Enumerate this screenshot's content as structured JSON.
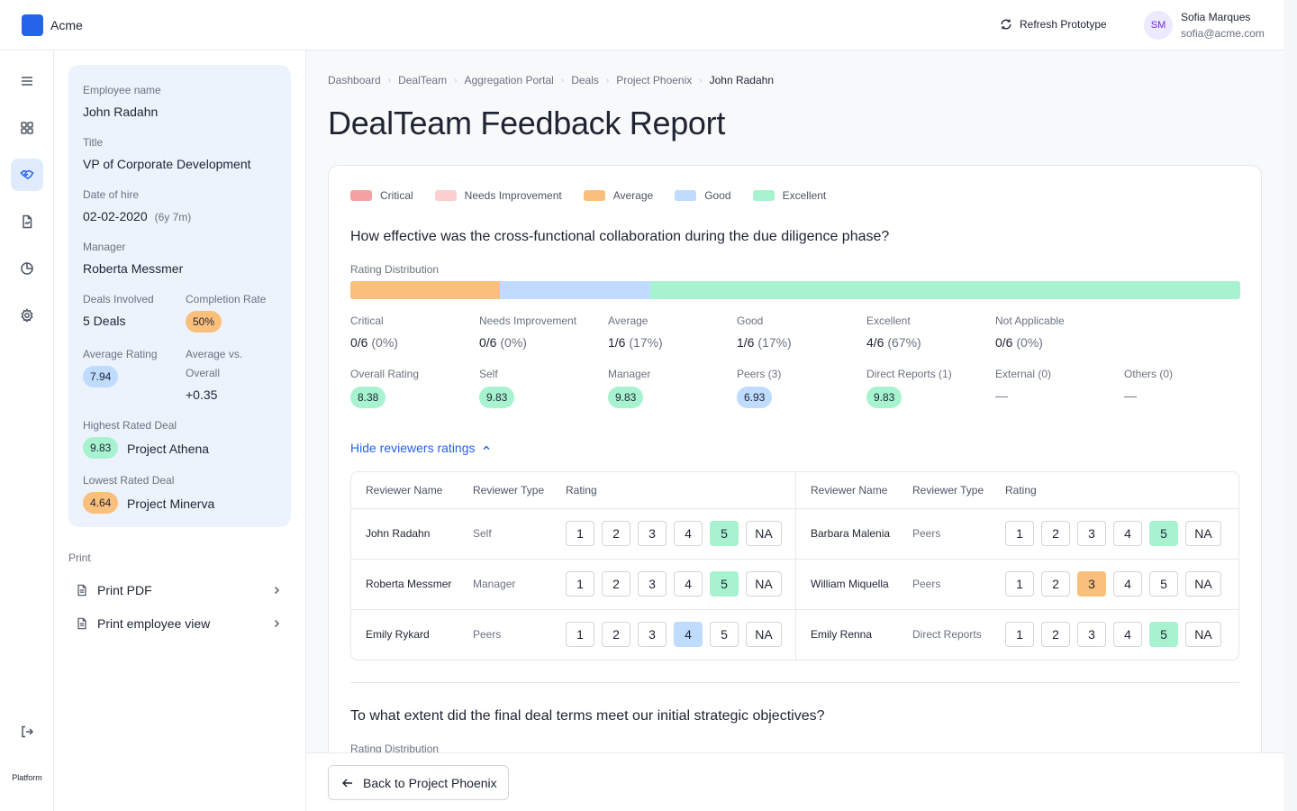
{
  "app": {
    "name": "Acme",
    "refresh_label": "Refresh Prototype"
  },
  "user": {
    "initials": "SM",
    "name": "Sofia Marques",
    "email": "sofia@acme.com"
  },
  "rail": {
    "footer_label": "Platform"
  },
  "employee": {
    "name_label": "Employee name",
    "name": "John Radahn",
    "title_label": "Title",
    "title": "VP of Corporate Development",
    "hire_label": "Date of hire",
    "hire_date": "02-02-2020",
    "tenure": "(6y 7m)",
    "manager_label": "Manager",
    "manager": "Roberta Messmer",
    "deals_label": "Deals Involved",
    "deals": "5 Deals",
    "completion_label": "Completion Rate",
    "completion": "50%",
    "avg_rating_label": "Average Rating",
    "avg_rating": "7.94",
    "avg_vs_label_1": "Average vs.",
    "avg_vs_label_2": "Overall",
    "avg_vs": "+0.35",
    "highest_label": "Highest Rated Deal",
    "highest_score": "9.83",
    "highest_deal": "Project Athena",
    "lowest_label": "Lowest Rated Deal",
    "lowest_score": "4.64",
    "lowest_deal": "Project Minerva"
  },
  "print": {
    "label": "Print",
    "pdf": "Print PDF",
    "employee_view": "Print employee view"
  },
  "breadcrumb": [
    "Dashboard",
    "DealTeam",
    "Aggregation Portal",
    "Deals",
    "Project Phoenix",
    "John Radahn"
  ],
  "page_title": "DealTeam Feedback Report",
  "legend": [
    {
      "label": "Critical",
      "color": "#f4a1a1"
    },
    {
      "label": "Needs Improvement",
      "color": "#fbcfd0"
    },
    {
      "label": "Average",
      "color": "#fbbf7c"
    },
    {
      "label": "Good",
      "color": "#bfdbfe"
    },
    {
      "label": "Excellent",
      "color": "#a7f3d0"
    }
  ],
  "question1": {
    "text": "How effective was the cross-functional collaboration during the due diligence phase?",
    "dist_label": "Rating Distribution",
    "distribution": [
      {
        "category": "Average",
        "fraction": 0.17,
        "color": "#fbbf7c"
      },
      {
        "category": "Good",
        "fraction": 0.17,
        "color": "#bfdbfe"
      },
      {
        "category": "Excellent",
        "fraction": 0.67,
        "color": "#a7f3d0"
      }
    ],
    "counts": [
      {
        "label": "Critical",
        "count": "0",
        "total": "/6",
        "pct": "(0%)"
      },
      {
        "label": "Needs Improvement",
        "count": "0",
        "total": "/6",
        "pct": "(0%)"
      },
      {
        "label": "Average",
        "count": "1",
        "total": "/6",
        "pct": "(17%)"
      },
      {
        "label": "Good",
        "count": "1",
        "total": "/6",
        "pct": "(17%)"
      },
      {
        "label": "Excellent",
        "count": "4",
        "total": "/6",
        "pct": "(67%)"
      },
      {
        "label": "Not Applicable",
        "count": "0",
        "total": "/6",
        "pct": "(0%)"
      }
    ],
    "scores": [
      {
        "label": "Overall Rating",
        "value": "8.38",
        "tone": "green"
      },
      {
        "label": "Self",
        "value": "9.83",
        "tone": "green"
      },
      {
        "label": "Manager",
        "value": "9.83",
        "tone": "green"
      },
      {
        "label": "Peers (3)",
        "value": "6.93",
        "tone": "blue"
      },
      {
        "label": "Direct Reports (1)",
        "value": "9.83",
        "tone": "green"
      },
      {
        "label": "External (0)",
        "value": "—",
        "tone": "none"
      },
      {
        "label": "Others (0)",
        "value": "—",
        "tone": "none"
      }
    ],
    "toggle_label": "Hide reviewers ratings",
    "table_headers": {
      "name": "Reviewer Name",
      "type": "Reviewer Type",
      "rating": "Rating"
    },
    "rating_options": [
      "1",
      "2",
      "3",
      "4",
      "5",
      "NA"
    ],
    "reviewers_left": [
      {
        "name": "John Radahn",
        "type": "Self",
        "selected": "5",
        "tone": "green"
      },
      {
        "name": "Roberta Messmer",
        "type": "Manager",
        "selected": "5",
        "tone": "green"
      },
      {
        "name": "Emily Rykard",
        "type": "Peers",
        "selected": "4",
        "tone": "blue"
      }
    ],
    "reviewers_right": [
      {
        "name": "Barbara Malenia",
        "type": "Peers",
        "selected": "5",
        "tone": "green"
      },
      {
        "name": "William Miquella",
        "type": "Peers",
        "selected": "3",
        "tone": "orange"
      },
      {
        "name": "Emily Renna",
        "type": "Direct Reports",
        "selected": "5",
        "tone": "green"
      }
    ]
  },
  "question2": {
    "text": "To what extent did the final deal terms meet our initial strategic objectives?",
    "dist_label": "Rating Distribution"
  },
  "footer": {
    "back_label": "Back to Project Phoenix"
  }
}
